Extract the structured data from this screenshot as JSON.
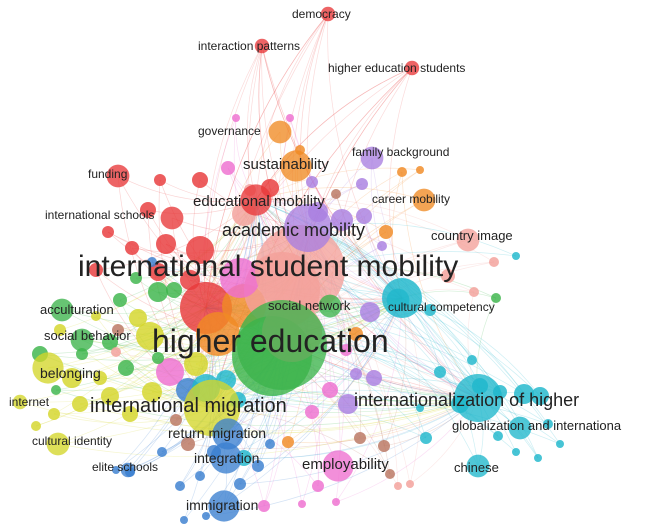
{
  "clusters": {
    "red": "#e8393a",
    "green": "#3cb44b",
    "yellow": "#d4d62a",
    "blue": "#3a7fd0",
    "cyan": "#1fb7cc",
    "purple": "#a97fe0",
    "orange": "#f08a24",
    "pink": "#ee6fd0",
    "brown": "#b97560",
    "salmon": "#f3a09a"
  },
  "terms": [
    {
      "key": "democracy",
      "label": "democracy",
      "cluster": "red",
      "weight": 1
    },
    {
      "key": "interaction_patterns",
      "label": "interaction patterns",
      "cluster": "red",
      "weight": 1
    },
    {
      "key": "higher_education_students",
      "label": "higher education students",
      "cluster": "red",
      "weight": 1
    },
    {
      "key": "governance",
      "label": "governance",
      "cluster": "orange",
      "weight": 2
    },
    {
      "key": "family_background",
      "label": "family background",
      "cluster": "purple",
      "weight": 2
    },
    {
      "key": "funding",
      "label": "funding",
      "cluster": "red",
      "weight": 2
    },
    {
      "key": "sustainability",
      "label": "sustainability",
      "cluster": "orange",
      "weight": 3
    },
    {
      "key": "educational_mobility",
      "label": "educational mobility",
      "cluster": "red",
      "weight": 3
    },
    {
      "key": "career_mobility",
      "label": "career mobility",
      "cluster": "orange",
      "weight": 2
    },
    {
      "key": "international_schools",
      "label": "international schools",
      "cluster": "red",
      "weight": 2
    },
    {
      "key": "academic_mobility",
      "label": "academic mobility",
      "cluster": "purple",
      "weight": 5
    },
    {
      "key": "country_image",
      "label": "country image",
      "cluster": "salmon",
      "weight": 2
    },
    {
      "key": "international_student_mobility",
      "label": "international student mobility",
      "cluster": "salmon",
      "weight": 10
    },
    {
      "key": "acculturation",
      "label": "acculturation",
      "cluster": "green",
      "weight": 2
    },
    {
      "key": "social_network",
      "label": "social network",
      "cluster": "green",
      "weight": 2
    },
    {
      "key": "cultural_competency",
      "label": "cultural competency",
      "cluster": "cyan",
      "weight": 2
    },
    {
      "key": "social_behavior",
      "label": "social behavior",
      "cluster": "green",
      "weight": 2
    },
    {
      "key": "higher_education",
      "label": "higher education",
      "cluster": "green",
      "weight": 10
    },
    {
      "key": "belonging",
      "label": "belonging",
      "cluster": "yellow",
      "weight": 3
    },
    {
      "key": "internet",
      "label": "internet",
      "cluster": "yellow",
      "weight": 1
    },
    {
      "key": "international_migration",
      "label": "international migration",
      "cluster": "yellow",
      "weight": 6
    },
    {
      "key": "internationalization_of_higher",
      "label": "internationalization of higher",
      "cluster": "cyan",
      "weight": 5
    },
    {
      "key": "cultural_identity",
      "label": "cultural identity",
      "cluster": "yellow",
      "weight": 2
    },
    {
      "key": "return_migration",
      "label": "return migration",
      "cluster": "blue",
      "weight": 3
    },
    {
      "key": "globalization_and_internationa",
      "label": "globalization and internationa",
      "cluster": "cyan",
      "weight": 2
    },
    {
      "key": "integration",
      "label": "integration",
      "cluster": "blue",
      "weight": 3
    },
    {
      "key": "elite_schools",
      "label": "elite schools",
      "cluster": "blue",
      "weight": 1
    },
    {
      "key": "employability",
      "label": "employability",
      "cluster": "pink",
      "weight": 3
    },
    {
      "key": "chinese",
      "label": "chinese",
      "cluster": "cyan",
      "weight": 2
    },
    {
      "key": "immigration",
      "label": "immigration",
      "cluster": "blue",
      "weight": 3
    }
  ]
}
